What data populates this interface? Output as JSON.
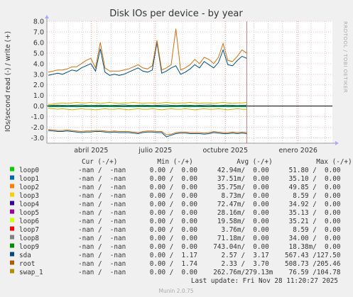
{
  "chart_data": {
    "type": "line",
    "title": "Disk IOs per device - by year",
    "ylabel": "IOs/second read (-) / write (+)",
    "side_label": "RRDTOOL / TOBI OETIKER",
    "ylim": [
      -3.5,
      8.0
    ],
    "yticks": [
      -3.0,
      -2.0,
      -1.0,
      0.0,
      1.0,
      2.0,
      3.0,
      4.0,
      5.0,
      6.0,
      7.0,
      8.0
    ],
    "ytick_labels": [
      "-3.0",
      "-2.0",
      "-1.0",
      "0.0",
      "1.0",
      "2.0",
      "3.0",
      "4.0",
      "5.0",
      "6.0",
      "7.0",
      "8.0"
    ],
    "xlabels": [
      "abril 2025",
      "julio 2025",
      "octubre 2025",
      "enero 2026"
    ],
    "grid": true,
    "series": [
      {
        "name": "sda",
        "color": "#00507a",
        "write": [
          2.9,
          3.0,
          3.1,
          3.0,
          3.2,
          3.4,
          3.3,
          3.6,
          3.8,
          4.0,
          3.3,
          5.4,
          3.2,
          2.9,
          3.0,
          2.9,
          3.0,
          3.2,
          3.4,
          3.6,
          3.3,
          3.2,
          3.4,
          6.0,
          3.1,
          3.3,
          3.6,
          3.8,
          3.0,
          3.2,
          3.5,
          3.9,
          3.6,
          4.2,
          3.9,
          3.6,
          4.1,
          5.3,
          3.9,
          3.8,
          4.3,
          4.7,
          4.5
        ],
        "read": [
          -2.3,
          -2.35,
          -2.4,
          -2.4,
          -2.35,
          -2.4,
          -2.45,
          -2.5,
          -2.45,
          -2.45,
          -2.4,
          -2.4,
          -2.45,
          -2.5,
          -2.45,
          -2.5,
          -2.5,
          -2.5,
          -2.55,
          -2.6,
          -2.5,
          -2.45,
          -2.45,
          -2.5,
          -2.5,
          -2.9,
          -2.75,
          -2.6,
          -2.55,
          -2.55,
          -2.6,
          -2.6,
          -2.6,
          -2.65,
          -2.6,
          -2.5,
          -2.55,
          -2.6,
          -2.6,
          -2.55,
          -2.6,
          -2.55,
          -2.6
        ]
      },
      {
        "name": "root",
        "color": "#cc7016",
        "write": [
          3.2,
          3.3,
          3.4,
          3.4,
          3.5,
          3.7,
          3.7,
          4.0,
          4.3,
          4.5,
          3.6,
          6.0,
          3.6,
          3.3,
          3.3,
          3.3,
          3.4,
          3.5,
          3.7,
          3.9,
          3.6,
          3.5,
          3.8,
          6.2,
          3.4,
          3.6,
          3.9,
          7.3,
          3.4,
          3.6,
          3.9,
          4.4,
          4.0,
          4.6,
          4.4,
          4.0,
          4.6,
          5.9,
          4.3,
          4.2,
          4.7,
          5.3,
          5.0
        ],
        "read": [
          -2.2,
          -2.25,
          -2.3,
          -2.3,
          -2.25,
          -2.3,
          -2.35,
          -2.4,
          -2.35,
          -2.35,
          -2.3,
          -2.3,
          -2.35,
          -2.4,
          -2.35,
          -2.4,
          -2.4,
          -2.4,
          -2.45,
          -2.5,
          -2.4,
          -2.35,
          -2.35,
          -2.4,
          -2.4,
          -2.7,
          -2.65,
          -2.5,
          -2.45,
          -2.45,
          -2.5,
          -2.5,
          -2.5,
          -2.55,
          -2.5,
          -2.4,
          -2.45,
          -2.5,
          -2.5,
          -2.45,
          -2.5,
          -2.45,
          -2.5
        ]
      },
      {
        "name": "swap_1",
        "color": "#ccb000",
        "write": [
          0.15,
          0.2,
          0.25,
          0.3,
          0.25,
          0.3,
          0.35,
          0.3,
          0.3,
          0.35,
          0.3,
          0.25,
          0.3,
          0.35,
          0.3,
          0.25,
          0.3,
          0.3,
          0.35,
          0.3,
          0.25,
          0.3,
          0.3,
          0.25,
          0.3,
          0.35,
          0.3,
          0.25,
          0.3,
          0.3,
          0.35,
          0.3,
          0.25,
          0.3,
          0.3,
          0.25,
          0.3,
          0.35,
          0.3,
          0.25,
          0.3,
          0.3,
          0.35
        ],
        "read": [
          -0.2,
          -0.25,
          -0.3,
          -0.25,
          -0.3,
          -0.35,
          -0.3,
          -0.25,
          -0.3,
          -0.3,
          -0.35,
          -0.3,
          -0.25,
          -0.3,
          -0.3,
          -0.25,
          -0.3,
          -0.35,
          -0.3,
          -0.25,
          -0.3,
          -0.3,
          -0.25,
          -0.3,
          -0.35,
          -0.3,
          -0.25,
          -0.3,
          -0.3,
          -0.25,
          -0.3,
          -0.35,
          -0.3,
          -0.25,
          -0.3,
          -0.3,
          -0.25,
          -0.3,
          -0.35,
          -0.3,
          -0.25,
          -0.3,
          -0.3
        ]
      },
      {
        "name": "loop8",
        "color": "#00aa70",
        "write": [
          0.05,
          0.08,
          0.1,
          0.08,
          0.06,
          0.08,
          0.1,
          0.12,
          0.08,
          0.06,
          0.08,
          0.1,
          0.08,
          0.06,
          0.08,
          0.1,
          0.12,
          0.08,
          0.06,
          0.08,
          0.1,
          0.08,
          0.06,
          0.08,
          0.1,
          0.12,
          0.08,
          0.06,
          0.08,
          0.1,
          0.08,
          0.06,
          0.08,
          0.1,
          0.12,
          0.08,
          0.06,
          0.08,
          0.1,
          0.08,
          0.06,
          0.08,
          0.1
        ],
        "read": [
          -0.05,
          -0.06,
          -0.08,
          -0.06,
          -0.05,
          -0.06,
          -0.08,
          -0.06,
          -0.05,
          -0.06,
          -0.08,
          -0.06,
          -0.05,
          -0.06,
          -0.08,
          -0.06,
          -0.05,
          -0.06,
          -0.08,
          -0.06,
          -0.05,
          -0.06,
          -0.08,
          -0.06,
          -0.05,
          -0.06,
          -0.08,
          -0.06,
          -0.05,
          -0.06,
          -0.08,
          -0.06,
          -0.05,
          -0.06,
          -0.08,
          -0.06,
          -0.05,
          -0.06,
          -0.08,
          -0.06,
          -0.05,
          -0.06,
          -0.08
        ]
      }
    ],
    "marker_x_fraction": 0.7
  },
  "legend": {
    "header": "Cur (-/+)          Min (-/+)           Avg (-/+)           Max (-/+)",
    "rows": [
      {
        "name": "loop0",
        "color": "#00cc00",
        "values": "-nan /  -nan      0.00 /  0.00     42.94m/  0.00     51.80 /  0.00"
      },
      {
        "name": "loop1",
        "color": "#0066b3",
        "values": "-nan /  -nan      0.00 /  0.00     37.51m/  0.00     35.10 /  0.00"
      },
      {
        "name": "loop2",
        "color": "#ff8000",
        "values": "-nan /  -nan      0.00 /  0.00     35.75m/  0.00     49.85 /  0.00"
      },
      {
        "name": "loop3",
        "color": "#ffcc00",
        "values": "-nan /  -nan      0.00 /  0.00      8.73m/  0.00      8.59 /  0.00"
      },
      {
        "name": "loop4",
        "color": "#330099",
        "values": "-nan /  -nan      0.00 /  0.00     72.47m/  0.00     34.92 /  0.00"
      },
      {
        "name": "loop5",
        "color": "#990099",
        "values": "-nan /  -nan      0.00 /  0.00     28.16m/  0.00     35.13 /  0.00"
      },
      {
        "name": "loop6",
        "color": "#ccff00",
        "values": "-nan /  -nan      0.00 /  0.00     19.58m/  0.00     35.21 /  0.00"
      },
      {
        "name": "loop7",
        "color": "#ff0000",
        "values": "-nan /  -nan      0.00 /  0.00      3.76m/  0.00      8.59 /  0.00"
      },
      {
        "name": "loop8",
        "color": "#808080",
        "values": "-nan /  -nan      0.00 /  0.00     71.18m/  0.00     34.00 /  0.00"
      },
      {
        "name": "loop9",
        "color": "#008f00",
        "values": "-nan /  -nan      0.00 /  0.00    743.04n/  0.00     18.38m/  0.00"
      },
      {
        "name": "sda",
        "color": "#00487d",
        "values": "-nan /  -nan      0.00 /  1.17      2.57 /  3.17    567.43 /127.50"
      },
      {
        "name": "root",
        "color": "#b35a00",
        "values": "-nan /  -nan      0.00 /  1.74      2.33 /  3.70    508.73 /205.46"
      },
      {
        "name": "swap_1",
        "color": "#b38f00",
        "values": "-nan /  -nan      0.00 /  0.00    262.76m/279.13m    76.59 /104.78"
      }
    ],
    "last_update": "Last update: Fri Nov 28 11:20:27 2025"
  },
  "footer": "Munin 2.0.75"
}
